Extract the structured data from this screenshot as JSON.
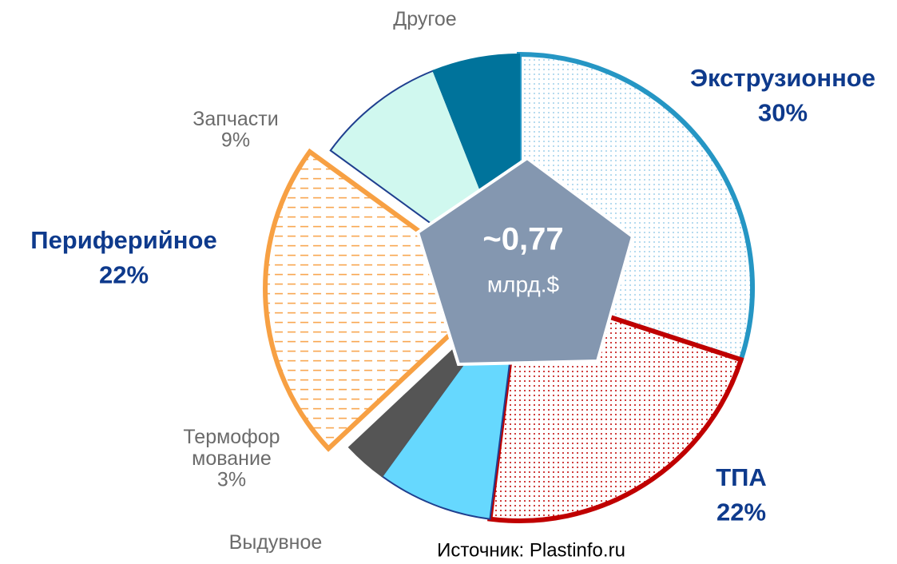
{
  "chart_data": {
    "type": "pie",
    "categories": [
      "Экструзионное",
      "ТПА",
      "Выдувное",
      "Термофор\nмование",
      "Периферийное",
      "Запчасти",
      "Другое"
    ],
    "values": [
      30,
      22,
      8,
      3,
      22,
      9,
      6
    ],
    "value_labels": [
      "30%",
      "22%",
      null,
      "3%",
      "22%",
      "9%",
      null
    ],
    "colors": [
      "#9fd0ea",
      "#c00000",
      "#66d8fe",
      "#555555",
      "#f7a043",
      "#d0f8ef",
      "#00739b"
    ],
    "edge_colors": [
      "#2596c4",
      "#c00000",
      "#1f3f8f",
      "#555555",
      "#f7a043",
      "#1f3f8f",
      "#00739b"
    ],
    "hatch": [
      "dots",
      "dots",
      null,
      null,
      "dashes",
      null,
      null
    ],
    "explode": [
      false,
      false,
      false,
      false,
      true,
      false,
      false
    ],
    "center_label": "~0,77",
    "center_unit": "млрд.$",
    "source": "Источник: Plastinfo.ru"
  }
}
